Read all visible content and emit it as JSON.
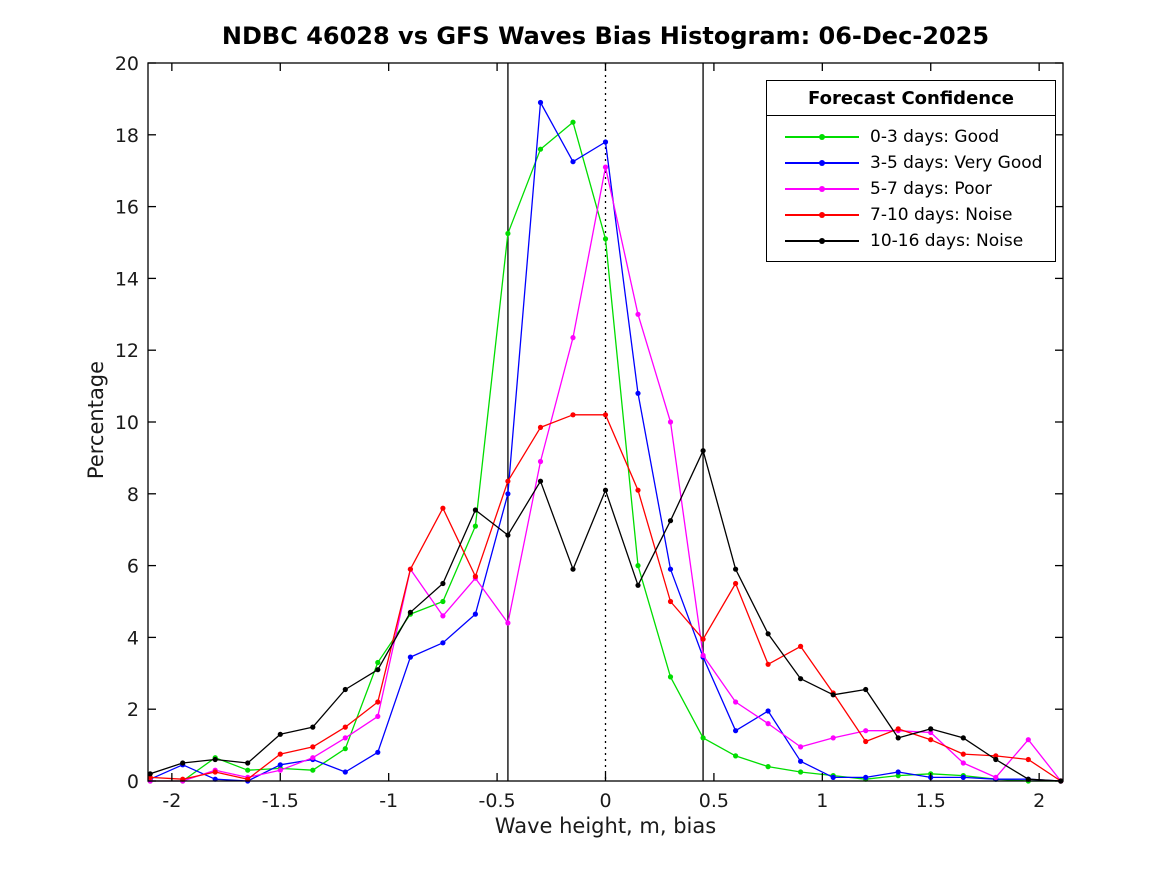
{
  "chart_data": {
    "type": "line",
    "title": "NDBC 46028 vs GFS Waves Bias Histogram: 06-Dec-2025",
    "xlabel": "Wave height, m, bias",
    "ylabel": "Percentage",
    "xlim": [
      -2.11,
      2.11
    ],
    "ylim": [
      0,
      20
    ],
    "grid": false,
    "xticks": {
      "values": [
        -2,
        -1.5,
        -1,
        -0.5,
        0,
        0.5,
        1,
        1.5,
        2
      ],
      "labels": [
        "-2",
        "-1.5",
        "-1",
        "-0.5",
        "0",
        "0.5",
        "1",
        "1.5",
        "2"
      ]
    },
    "yticks": {
      "values": [
        0,
        2,
        4,
        6,
        8,
        10,
        12,
        14,
        16,
        18,
        20
      ],
      "labels": [
        "0",
        "2",
        "4",
        "6",
        "8",
        "10",
        "12",
        "14",
        "16",
        "18",
        "20"
      ]
    },
    "x": [
      -2.1,
      -1.95,
      -1.8,
      -1.65,
      -1.5,
      -1.35,
      -1.2,
      -1.05,
      -0.9,
      -0.75,
      -0.6,
      -0.45,
      -0.3,
      -0.15,
      0,
      0.15,
      0.3,
      0.45,
      0.6,
      0.75,
      0.9,
      1.05,
      1.2,
      1.35,
      1.5,
      1.65,
      1.8,
      1.95,
      2.1
    ],
    "series": [
      {
        "name": "0-3 days: Good",
        "color": "#00dd00",
        "marker": "circle",
        "values": [
          0,
          0,
          0.65,
          0.3,
          0.35,
          0.3,
          0.9,
          3.3,
          4.65,
          5.0,
          7.1,
          15.25,
          17.6,
          18.35,
          15.1,
          6.0,
          2.9,
          1.2,
          0.7,
          0.4,
          0.25,
          0.15,
          0.05,
          0.15,
          0.2,
          0.15,
          0.05,
          0,
          0
        ]
      },
      {
        "name": "3-5 days: Very Good",
        "color": "#0000ff",
        "marker": "circle",
        "values": [
          0.05,
          0.45,
          0.05,
          0,
          0.45,
          0.6,
          0.25,
          0.8,
          3.45,
          3.85,
          4.65,
          8.0,
          18.9,
          17.25,
          17.8,
          10.8,
          5.9,
          3.45,
          1.4,
          1.95,
          0.55,
          0.1,
          0.1,
          0.25,
          0.1,
          0.1,
          0.05,
          0.05,
          0
        ]
      },
      {
        "name": "5-7 days: Poor",
        "color": "#ff00ff",
        "marker": "circle",
        "values": [
          0,
          0,
          0.3,
          0.1,
          0.3,
          0.65,
          1.2,
          1.8,
          5.9,
          4.6,
          5.65,
          4.4,
          8.9,
          12.35,
          17.1,
          13.0,
          10.0,
          3.5,
          2.2,
          1.6,
          0.95,
          1.2,
          1.4,
          1.4,
          1.35,
          0.5,
          0.1,
          1.15,
          0
        ]
      },
      {
        "name": "7-10 days: Noise",
        "color": "#ff0000",
        "marker": "circle",
        "values": [
          0.1,
          0.05,
          0.25,
          0.05,
          0.75,
          0.95,
          1.5,
          2.2,
          5.9,
          7.6,
          5.7,
          8.35,
          9.85,
          10.2,
          10.2,
          8.1,
          5.0,
          3.95,
          5.5,
          3.25,
          3.75,
          2.45,
          1.1,
          1.45,
          1.15,
          0.75,
          0.7,
          0.6,
          0
        ]
      },
      {
        "name": "10-16 days: Noise",
        "color": "#000000",
        "marker": "circle",
        "values": [
          0.2,
          0.5,
          0.6,
          0.5,
          1.3,
          1.5,
          2.55,
          3.1,
          4.7,
          5.5,
          7.55,
          6.85,
          8.35,
          5.9,
          8.1,
          5.45,
          7.25,
          9.2,
          5.9,
          4.1,
          2.85,
          2.4,
          2.55,
          1.2,
          1.45,
          1.2,
          0.6,
          0.05,
          0
        ]
      }
    ],
    "reference_lines": [
      {
        "x": -0.45,
        "style": "solid",
        "color": "#000000"
      },
      {
        "x": 0,
        "style": "dotted",
        "color": "#000000"
      },
      {
        "x": 0.45,
        "style": "solid",
        "color": "#000000"
      }
    ],
    "legend": {
      "title": "Forecast Confidence",
      "position": "top-right"
    }
  }
}
